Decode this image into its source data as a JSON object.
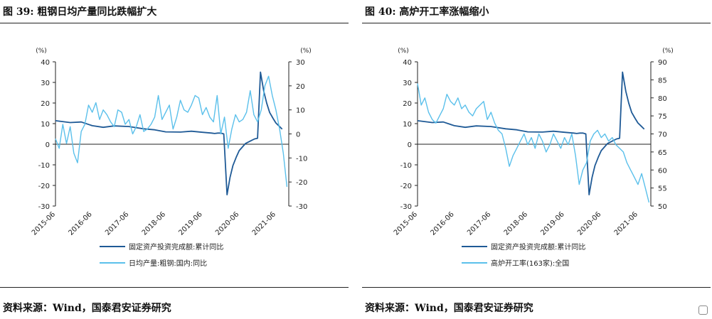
{
  "chart_data": [
    {
      "type": "line",
      "title": "图 39: 粗钢日均产量同比跌幅扩大",
      "source": "资料来源：Wind，国泰君安证券研究",
      "left_axis": {
        "unit": "(%)",
        "ylim": [
          -30,
          40
        ],
        "ticks": [
          40,
          30,
          20,
          10,
          0,
          -10,
          -20,
          -30
        ]
      },
      "right_axis": {
        "unit": "(%)",
        "ylim": [
          -30,
          30
        ],
        "ticks": [
          30,
          20,
          10,
          0,
          -10,
          -20,
          -30
        ]
      },
      "x_ticks": [
        "2015-06",
        "2016-06",
        "2017-06",
        "2018-06",
        "2019-06",
        "2020-06",
        "2021-06"
      ],
      "grid": false,
      "legend_position": "bottom",
      "series": [
        {
          "name": "固定资产投资完成额:累计同比",
          "axis": "left",
          "color": "#1f5a96",
          "x": [
            2015.5,
            2015.9,
            2016.2,
            2016.5,
            2016.8,
            2017.1,
            2017.5,
            2017.9,
            2018.2,
            2018.5,
            2018.9,
            2019.2,
            2019.5,
            2019.75,
            2019.83,
            2019.92,
            2020.0,
            2020.08,
            2020.17,
            2020.25,
            2020.33,
            2020.42,
            2020.5,
            2020.67,
            2020.83,
            2020.92,
            2021.0,
            2021.08,
            2021.17,
            2021.25,
            2021.33,
            2021.42,
            2021.5,
            2021.58,
            2021.67
          ],
          "values": [
            11.4,
            10.5,
            10.8,
            9.0,
            8.2,
            8.9,
            8.6,
            7.5,
            7.0,
            6.0,
            5.9,
            6.3,
            5.8,
            5.4,
            5.2,
            5.4,
            5.4,
            5.0,
            -24.5,
            -16.1,
            -10.3,
            -6.3,
            -3.1,
            0.3,
            1.8,
            2.6,
            2.9,
            35.0,
            25.6,
            19.9,
            15.4,
            12.6,
            10.3,
            8.9,
            7.3
          ]
        },
        {
          "name": "日均产量:粗钢:国内:同比",
          "axis": "right",
          "color": "#5bc0eb",
          "x": [
            2015.5,
            2015.6,
            2015.7,
            2015.8,
            2015.9,
            2016.0,
            2016.1,
            2016.2,
            2016.3,
            2016.4,
            2016.5,
            2016.6,
            2016.7,
            2016.8,
            2016.9,
            2017.0,
            2017.1,
            2017.2,
            2017.3,
            2017.4,
            2017.5,
            2017.6,
            2017.7,
            2017.8,
            2017.9,
            2018.0,
            2018.1,
            2018.2,
            2018.3,
            2018.4,
            2018.5,
            2018.6,
            2018.7,
            2018.8,
            2018.9,
            2019.0,
            2019.1,
            2019.2,
            2019.3,
            2019.4,
            2019.5,
            2019.6,
            2019.7,
            2019.8,
            2019.9,
            2020.0,
            2020.1,
            2020.2,
            2020.3,
            2020.4,
            2020.5,
            2020.6,
            2020.7,
            2020.8,
            2020.9,
            2021.0,
            2021.1,
            2021.2,
            2021.3,
            2021.4,
            2021.5,
            2021.6,
            2021.7,
            2021.8
          ],
          "values": [
            -2,
            -6,
            4,
            -4,
            3,
            -8,
            -12,
            1,
            4,
            12,
            9,
            13,
            6,
            10,
            8,
            5,
            3,
            10,
            9,
            4,
            6,
            0,
            3,
            8,
            1,
            2,
            4,
            7,
            16,
            6,
            9,
            12,
            2,
            7,
            14,
            10,
            9,
            12,
            16,
            15,
            8,
            11,
            7,
            5,
            16,
            0,
            7,
            -6,
            2,
            8,
            5,
            6,
            9,
            18,
            8,
            5,
            10,
            20,
            24,
            16,
            10,
            2,
            -8,
            -22
          ]
        }
      ]
    },
    {
      "type": "line",
      "title": "图 40: 高炉开工率涨幅缩小",
      "source": "资料来源：Wind，国泰君安证券研究",
      "left_axis": {
        "unit": "(%)",
        "ylim": [
          -30,
          40
        ],
        "ticks": [
          40,
          30,
          20,
          10,
          0,
          -10,
          -20,
          -30
        ]
      },
      "right_axis": {
        "unit": "(%)",
        "ylim": [
          50,
          90
        ],
        "ticks": [
          90,
          85,
          80,
          75,
          70,
          65,
          60,
          55,
          50
        ]
      },
      "x_ticks": [
        "2015-06",
        "2016-06",
        "2017-06",
        "2018-06",
        "2019-06",
        "2020-06",
        "2021-06"
      ],
      "grid": false,
      "legend_position": "bottom",
      "series": [
        {
          "name": "固定资产投资完成额:累计同比",
          "axis": "left",
          "color": "#1f5a96",
          "x": [
            2015.5,
            2015.9,
            2016.2,
            2016.5,
            2016.8,
            2017.1,
            2017.5,
            2017.9,
            2018.2,
            2018.5,
            2018.9,
            2019.2,
            2019.5,
            2019.75,
            2019.83,
            2019.92,
            2020.0,
            2020.08,
            2020.17,
            2020.25,
            2020.33,
            2020.42,
            2020.5,
            2020.67,
            2020.83,
            2020.92,
            2021.0,
            2021.08,
            2021.17,
            2021.25,
            2021.33,
            2021.42,
            2021.5,
            2021.58,
            2021.67
          ],
          "values": [
            11.4,
            10.5,
            10.8,
            9.0,
            8.2,
            8.9,
            8.6,
            7.5,
            7.0,
            6.0,
            5.9,
            6.3,
            5.8,
            5.4,
            5.2,
            5.4,
            5.4,
            5.0,
            -24.5,
            -16.1,
            -10.3,
            -6.3,
            -3.1,
            0.3,
            1.8,
            2.6,
            2.9,
            35.0,
            25.6,
            19.9,
            15.4,
            12.6,
            10.3,
            8.9,
            7.3
          ]
        },
        {
          "name": "高炉开工率(163家):全国",
          "axis": "right",
          "color": "#5bc0eb",
          "x": [
            2015.5,
            2015.6,
            2015.7,
            2015.8,
            2015.9,
            2016.0,
            2016.1,
            2016.2,
            2016.3,
            2016.4,
            2016.5,
            2016.6,
            2016.7,
            2016.8,
            2016.9,
            2017.0,
            2017.1,
            2017.2,
            2017.3,
            2017.4,
            2017.5,
            2017.6,
            2017.7,
            2017.8,
            2017.9,
            2018.0,
            2018.1,
            2018.2,
            2018.3,
            2018.4,
            2018.5,
            2018.6,
            2018.7,
            2018.8,
            2018.9,
            2019.0,
            2019.1,
            2019.2,
            2019.3,
            2019.4,
            2019.5,
            2019.6,
            2019.7,
            2019.8,
            2019.9,
            2020.0,
            2020.1,
            2020.2,
            2020.3,
            2020.4,
            2020.5,
            2020.6,
            2020.7,
            2020.8,
            2020.9,
            2021.0,
            2021.1,
            2021.2,
            2021.3,
            2021.4,
            2021.5,
            2021.6,
            2021.7,
            2021.8
          ],
          "values": [
            84,
            78,
            80,
            76,
            74,
            73,
            75,
            77,
            81,
            79,
            78,
            80,
            77,
            78,
            76,
            75,
            77,
            78,
            79,
            74,
            76,
            73,
            71,
            70,
            66,
            61,
            64,
            66,
            68,
            70,
            67,
            69,
            66,
            70,
            68,
            65,
            67,
            70,
            68,
            66,
            69,
            67,
            70,
            64,
            56,
            60,
            62,
            68,
            70,
            71,
            69,
            70,
            68,
            69,
            67,
            66,
            65,
            62,
            60,
            58,
            56,
            59,
            55,
            51
          ]
        }
      ]
    }
  ]
}
